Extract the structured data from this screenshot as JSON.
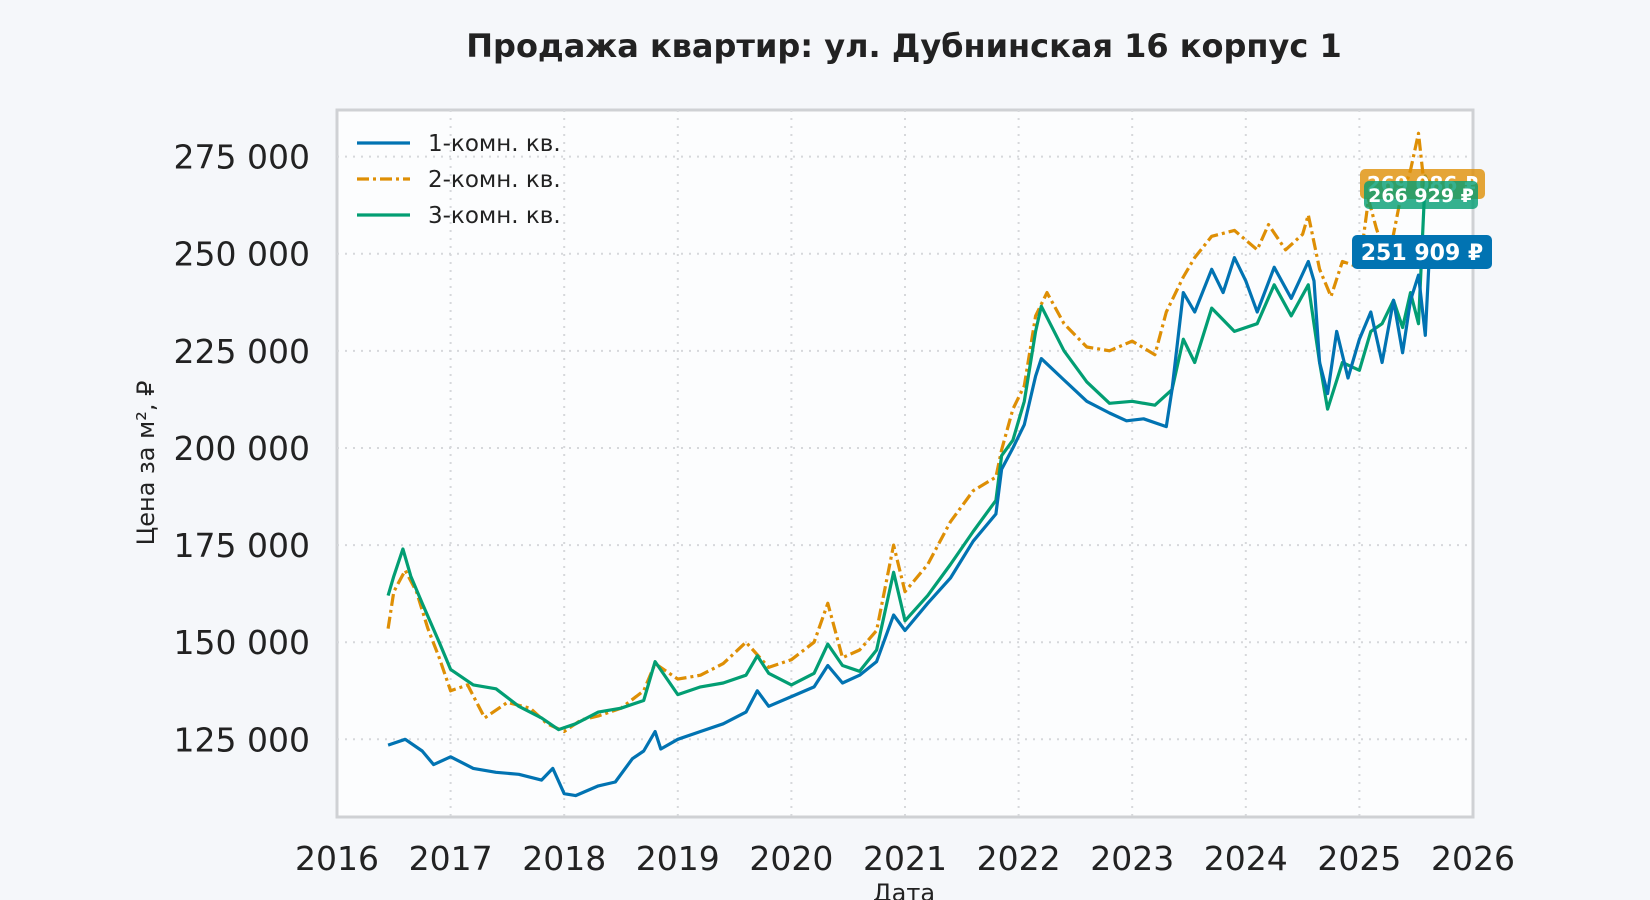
{
  "chart_data": {
    "type": "line",
    "title": "Продажа квартир: ул. Дубнинская 16 корпус 1",
    "xlabel": "Дата",
    "ylabel": "Цена за м², ₽",
    "xlim": [
      2016,
      2026
    ],
    "ylim": [
      105000,
      287000
    ],
    "x_ticks": [
      "2016",
      "2017",
      "2018",
      "2019",
      "2020",
      "2021",
      "2022",
      "2023",
      "2024",
      "2025",
      "2026"
    ],
    "y_ticks": [
      "125 000",
      "150 000",
      "175 000",
      "200 000",
      "225 000",
      "250 000",
      "275 000"
    ],
    "grid": true,
    "legend_position": "top-left",
    "series": [
      {
        "name": "1-комн. кв.",
        "color": "#0173b2",
        "style": "solid",
        "last_label": "251 909 ₽",
        "points": [
          [
            2016.45,
            123500
          ],
          [
            2016.6,
            125000
          ],
          [
            2016.75,
            122000
          ],
          [
            2016.85,
            118500
          ],
          [
            2017.0,
            120500
          ],
          [
            2017.2,
            117500
          ],
          [
            2017.4,
            116500
          ],
          [
            2017.6,
            116000
          ],
          [
            2017.8,
            114500
          ],
          [
            2017.9,
            117500
          ],
          [
            2018.0,
            111000
          ],
          [
            2018.1,
            110500
          ],
          [
            2018.3,
            113000
          ],
          [
            2018.45,
            114000
          ],
          [
            2018.6,
            120000
          ],
          [
            2018.7,
            122000
          ],
          [
            2018.8,
            127000
          ],
          [
            2018.85,
            122500
          ],
          [
            2019.0,
            125000
          ],
          [
            2019.2,
            127000
          ],
          [
            2019.4,
            129000
          ],
          [
            2019.6,
            132000
          ],
          [
            2019.7,
            137500
          ],
          [
            2019.8,
            133500
          ],
          [
            2020.0,
            136000
          ],
          [
            2020.2,
            138500
          ],
          [
            2020.32,
            144000
          ],
          [
            2020.45,
            139500
          ],
          [
            2020.6,
            141500
          ],
          [
            2020.75,
            145000
          ],
          [
            2020.9,
            157000
          ],
          [
            2021.0,
            153000
          ],
          [
            2021.2,
            160000
          ],
          [
            2021.4,
            166500
          ],
          [
            2021.6,
            176000
          ],
          [
            2021.8,
            183000
          ],
          [
            2021.85,
            194500
          ],
          [
            2021.95,
            200000
          ],
          [
            2022.05,
            206000
          ],
          [
            2022.15,
            218500
          ],
          [
            2022.2,
            223000
          ],
          [
            2022.4,
            217500
          ],
          [
            2022.6,
            212000
          ],
          [
            2022.8,
            209000
          ],
          [
            2022.95,
            207000
          ],
          [
            2023.1,
            207500
          ],
          [
            2023.3,
            205500
          ],
          [
            2023.35,
            215000
          ],
          [
            2023.45,
            240000
          ],
          [
            2023.55,
            235000
          ],
          [
            2023.7,
            246000
          ],
          [
            2023.8,
            240000
          ],
          [
            2023.9,
            249000
          ],
          [
            2024.0,
            243000
          ],
          [
            2024.1,
            235000
          ],
          [
            2024.25,
            246500
          ],
          [
            2024.4,
            238500
          ],
          [
            2024.55,
            248000
          ],
          [
            2024.6,
            243000
          ],
          [
            2024.65,
            222000
          ],
          [
            2024.72,
            214000
          ],
          [
            2024.8,
            230000
          ],
          [
            2024.9,
            218000
          ],
          [
            2025.0,
            228000
          ],
          [
            2025.1,
            235000
          ],
          [
            2025.2,
            222000
          ],
          [
            2025.3,
            238000
          ],
          [
            2025.38,
            224500
          ],
          [
            2025.45,
            238000
          ],
          [
            2025.52,
            244500
          ],
          [
            2025.58,
            229000
          ],
          [
            2025.62,
            251909
          ]
        ]
      },
      {
        "name": "2-комн. кв.",
        "color": "#de8f05",
        "style": "dashdot",
        "last_label": "269 086 ₽",
        "points": [
          [
            2016.45,
            153500
          ],
          [
            2016.5,
            163000
          ],
          [
            2016.6,
            168500
          ],
          [
            2016.7,
            163000
          ],
          [
            2016.8,
            153500
          ],
          [
            2016.9,
            146000
          ],
          [
            2017.0,
            137500
          ],
          [
            2017.15,
            139000
          ],
          [
            2017.3,
            130500
          ],
          [
            2017.5,
            134500
          ],
          [
            2017.7,
            133000
          ],
          [
            2017.85,
            129000
          ],
          [
            2018.0,
            127000
          ],
          [
            2018.15,
            130000
          ],
          [
            2018.3,
            131000
          ],
          [
            2018.5,
            133000
          ],
          [
            2018.7,
            137500
          ],
          [
            2018.8,
            144500
          ],
          [
            2019.0,
            140500
          ],
          [
            2019.2,
            141500
          ],
          [
            2019.4,
            144500
          ],
          [
            2019.6,
            150000
          ],
          [
            2019.8,
            143500
          ],
          [
            2020.0,
            145500
          ],
          [
            2020.2,
            150000
          ],
          [
            2020.32,
            160000
          ],
          [
            2020.45,
            146000
          ],
          [
            2020.6,
            148000
          ],
          [
            2020.75,
            153000
          ],
          [
            2020.9,
            175000
          ],
          [
            2021.0,
            163000
          ],
          [
            2021.2,
            170000
          ],
          [
            2021.4,
            181000
          ],
          [
            2021.6,
            189000
          ],
          [
            2021.8,
            192500
          ],
          [
            2021.85,
            199500
          ],
          [
            2021.95,
            210000
          ],
          [
            2022.05,
            216000
          ],
          [
            2022.15,
            234000
          ],
          [
            2022.25,
            240000
          ],
          [
            2022.4,
            232000
          ],
          [
            2022.6,
            226000
          ],
          [
            2022.8,
            225000
          ],
          [
            2023.0,
            227500
          ],
          [
            2023.2,
            224000
          ],
          [
            2023.3,
            235000
          ],
          [
            2023.45,
            244000
          ],
          [
            2023.55,
            249000
          ],
          [
            2023.7,
            254500
          ],
          [
            2023.9,
            256000
          ],
          [
            2024.1,
            251000
          ],
          [
            2024.2,
            257500
          ],
          [
            2024.35,
            251000
          ],
          [
            2024.5,
            255000
          ],
          [
            2024.55,
            260000
          ],
          [
            2024.65,
            246000
          ],
          [
            2024.75,
            239000
          ],
          [
            2024.85,
            248000
          ],
          [
            2025.0,
            246500
          ],
          [
            2025.08,
            264000
          ],
          [
            2025.15,
            256500
          ],
          [
            2025.25,
            247500
          ],
          [
            2025.35,
            262500
          ],
          [
            2025.45,
            271500
          ],
          [
            2025.52,
            281000
          ],
          [
            2025.58,
            265000
          ],
          [
            2025.62,
            269086
          ]
        ]
      },
      {
        "name": "3-комн. кв.",
        "color": "#029e73",
        "style": "solid",
        "last_label": "266 929 ₽",
        "points": [
          [
            2016.45,
            162000
          ],
          [
            2016.5,
            167000
          ],
          [
            2016.58,
            174000
          ],
          [
            2016.65,
            167000
          ],
          [
            2016.75,
            160000
          ],
          [
            2016.9,
            150000
          ],
          [
            2017.0,
            143000
          ],
          [
            2017.2,
            139000
          ],
          [
            2017.4,
            138000
          ],
          [
            2017.6,
            133500
          ],
          [
            2017.8,
            130500
          ],
          [
            2017.95,
            127500
          ],
          [
            2018.1,
            129000
          ],
          [
            2018.3,
            132000
          ],
          [
            2018.5,
            133000
          ],
          [
            2018.7,
            135000
          ],
          [
            2018.8,
            145000
          ],
          [
            2019.0,
            136500
          ],
          [
            2019.2,
            138500
          ],
          [
            2019.4,
            139500
          ],
          [
            2019.6,
            141500
          ],
          [
            2019.7,
            146500
          ],
          [
            2019.8,
            142000
          ],
          [
            2020.0,
            139000
          ],
          [
            2020.2,
            142000
          ],
          [
            2020.32,
            149500
          ],
          [
            2020.45,
            144000
          ],
          [
            2020.6,
            142500
          ],
          [
            2020.75,
            148000
          ],
          [
            2020.9,
            168000
          ],
          [
            2021.0,
            155500
          ],
          [
            2021.2,
            162000
          ],
          [
            2021.4,
            170000
          ],
          [
            2021.6,
            178500
          ],
          [
            2021.8,
            186500
          ],
          [
            2021.85,
            198000
          ],
          [
            2021.95,
            202000
          ],
          [
            2022.05,
            212000
          ],
          [
            2022.15,
            230000
          ],
          [
            2022.2,
            236500
          ],
          [
            2022.4,
            225000
          ],
          [
            2022.6,
            217000
          ],
          [
            2022.8,
            211500
          ],
          [
            2023.0,
            212000
          ],
          [
            2023.2,
            211000
          ],
          [
            2023.35,
            215000
          ],
          [
            2023.45,
            228000
          ],
          [
            2023.55,
            222000
          ],
          [
            2023.7,
            236000
          ],
          [
            2023.9,
            230000
          ],
          [
            2024.1,
            232000
          ],
          [
            2024.25,
            242000
          ],
          [
            2024.4,
            234000
          ],
          [
            2024.55,
            242000
          ],
          [
            2024.65,
            222000
          ],
          [
            2024.72,
            210000
          ],
          [
            2024.85,
            222000
          ],
          [
            2025.0,
            220000
          ],
          [
            2025.1,
            230000
          ],
          [
            2025.2,
            232000
          ],
          [
            2025.3,
            238000
          ],
          [
            2025.38,
            231000
          ],
          [
            2025.45,
            240000
          ],
          [
            2025.52,
            232000
          ],
          [
            2025.58,
            270000
          ],
          [
            2025.62,
            266929
          ]
        ]
      }
    ]
  }
}
